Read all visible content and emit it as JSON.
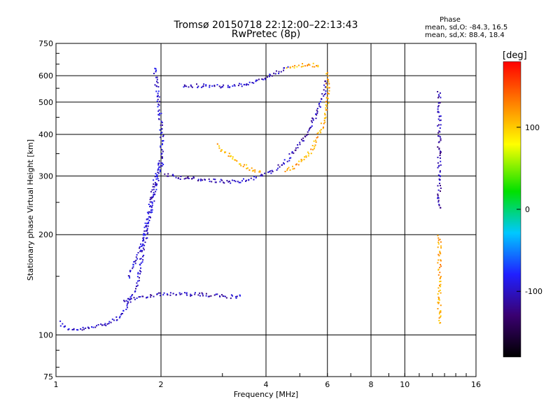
{
  "chart_data": {
    "type": "scatter",
    "title": "Tromsø 20150718 22:12:00–22:13:43",
    "subtitle": "RwPretec (8p)",
    "xlabel": "Frequency [MHz]",
    "ylabel": "Stationary phase Virtual Height [km]",
    "x_scale": "log",
    "y_scale": "log",
    "xlim": [
      1,
      16
    ],
    "ylim": [
      75,
      750
    ],
    "x_ticks": [
      1,
      2,
      4,
      6,
      8,
      10,
      16
    ],
    "x_tick_labels": [
      "1",
      "2",
      "4",
      "6",
      "8",
      "10",
      "16"
    ],
    "y_ticks": [
      75,
      100,
      200,
      300,
      400,
      500,
      600,
      750
    ],
    "y_tick_labels": [
      "75",
      "100",
      "200",
      "300",
      "400",
      "500",
      "600",
      "750"
    ],
    "grid": true,
    "stats": {
      "heading": "Phase",
      "o_line": "mean, sd,O: -84.3, 16.5",
      "x_line": "mean, sd,X:  88.4, 18.4"
    },
    "colorbar": {
      "label": "[deg]",
      "range": [
        -180,
        180
      ],
      "ticks": [
        100,
        0,
        -100
      ],
      "tick_labels": [
        "100",
        "0",
        "-100"
      ],
      "colors": [
        "#000000",
        "#3a0070",
        "#2020ff",
        "#00c8ff",
        "#00e000",
        "#ffff00",
        "#ff8000",
        "#ff0000"
      ]
    },
    "traces": [
      {
        "phase": -100,
        "points": [
          [
            1.02,
            110
          ],
          [
            1.05,
            106
          ],
          [
            1.1,
            104
          ],
          [
            1.15,
            104
          ],
          [
            1.2,
            105
          ],
          [
            1.25,
            105
          ],
          [
            1.3,
            107
          ],
          [
            1.35,
            108
          ],
          [
            1.4,
            109
          ],
          [
            1.45,
            111
          ],
          [
            1.5,
            113
          ],
          [
            1.55,
            117
          ],
          [
            1.6,
            123
          ],
          [
            1.65,
            132
          ],
          [
            1.7,
            142
          ],
          [
            1.72,
            155
          ],
          [
            1.75,
            170
          ],
          [
            1.78,
            185
          ],
          [
            1.8,
            200
          ],
          [
            1.82,
            220
          ],
          [
            1.85,
            240
          ],
          [
            1.88,
            260
          ],
          [
            1.9,
            285
          ],
          [
            1.95,
            310
          ],
          [
            2.0,
            330
          ],
          [
            2.05,
            330
          ]
        ]
      },
      {
        "phase": -105,
        "points": [
          [
            2.05,
            305
          ],
          [
            2.2,
            300
          ],
          [
            2.4,
            296
          ],
          [
            2.6,
            294
          ],
          [
            2.8,
            292
          ],
          [
            3.0,
            290
          ],
          [
            3.2,
            290
          ],
          [
            3.4,
            292
          ],
          [
            3.6,
            296
          ],
          [
            3.8,
            300
          ],
          [
            4.0,
            306
          ],
          [
            4.2,
            314
          ],
          [
            4.4,
            324
          ],
          [
            4.6,
            338
          ],
          [
            4.8,
            356
          ],
          [
            5.0,
            378
          ],
          [
            5.2,
            402
          ],
          [
            5.4,
            432
          ],
          [
            5.6,
            470
          ],
          [
            5.8,
            520
          ],
          [
            5.9,
            560
          ],
          [
            5.95,
            590
          ]
        ]
      },
      {
        "phase": -100,
        "points": [
          [
            2.3,
            560
          ],
          [
            2.5,
            562
          ],
          [
            2.7,
            563
          ],
          [
            2.9,
            562
          ],
          [
            3.0,
            558
          ],
          [
            3.2,
            560
          ],
          [
            3.4,
            566
          ],
          [
            3.6,
            574
          ],
          [
            3.8,
            584
          ],
          [
            4.0,
            596
          ],
          [
            4.2,
            610
          ],
          [
            4.4,
            625
          ],
          [
            4.6,
            640
          ]
        ]
      },
      {
        "phase": -105,
        "points": [
          [
            1.55,
            128
          ],
          [
            1.7,
            130
          ],
          [
            1.85,
            132
          ],
          [
            2.0,
            133
          ],
          [
            2.2,
            133
          ],
          [
            2.4,
            133
          ],
          [
            2.6,
            133
          ],
          [
            2.8,
            132
          ],
          [
            3.0,
            131
          ],
          [
            3.2,
            131
          ],
          [
            3.4,
            131
          ]
        ]
      },
      {
        "phase": -95,
        "points": [
          [
            1.6,
            150
          ],
          [
            1.7,
            170
          ],
          [
            1.75,
            190
          ],
          [
            1.8,
            210
          ],
          [
            1.85,
            230
          ],
          [
            1.9,
            260
          ],
          [
            1.95,
            300
          ],
          [
            2.0,
            350
          ],
          [
            2.0,
            400
          ],
          [
            1.98,
            460
          ],
          [
            1.95,
            520
          ],
          [
            1.92,
            600
          ],
          [
            1.9,
            640
          ]
        ]
      },
      {
        "phase": 110,
        "points": [
          [
            2.9,
            372
          ],
          [
            3.1,
            350
          ],
          [
            3.3,
            333
          ],
          [
            3.5,
            320
          ],
          [
            3.7,
            312
          ],
          [
            3.9,
            308
          ]
        ]
      },
      {
        "phase": 115,
        "points": [
          [
            4.5,
            312
          ],
          [
            4.8,
            322
          ],
          [
            5.1,
            338
          ],
          [
            5.4,
            362
          ],
          [
            5.6,
            392
          ],
          [
            5.8,
            430
          ],
          [
            5.9,
            470
          ],
          [
            6.0,
            510
          ],
          [
            6.0,
            560
          ],
          [
            5.95,
            620
          ]
        ]
      },
      {
        "phase": 112,
        "points": [
          [
            4.6,
            630
          ],
          [
            4.8,
            640
          ],
          [
            5.0,
            648
          ],
          [
            5.2,
            650
          ],
          [
            5.5,
            648
          ],
          [
            5.7,
            640
          ]
        ]
      },
      {
        "phase": -110,
        "points": [
          [
            12.5,
            540
          ],
          [
            12.5,
            480
          ],
          [
            12.5,
            420
          ],
          [
            12.5,
            380
          ],
          [
            12.5,
            330
          ],
          [
            12.5,
            290
          ],
          [
            12.5,
            260
          ],
          [
            12.5,
            240
          ]
        ]
      },
      {
        "phase": 115,
        "points": [
          [
            12.5,
            200
          ],
          [
            12.5,
            150
          ],
          [
            12.5,
            125
          ],
          [
            12.5,
            108
          ]
        ]
      }
    ]
  }
}
